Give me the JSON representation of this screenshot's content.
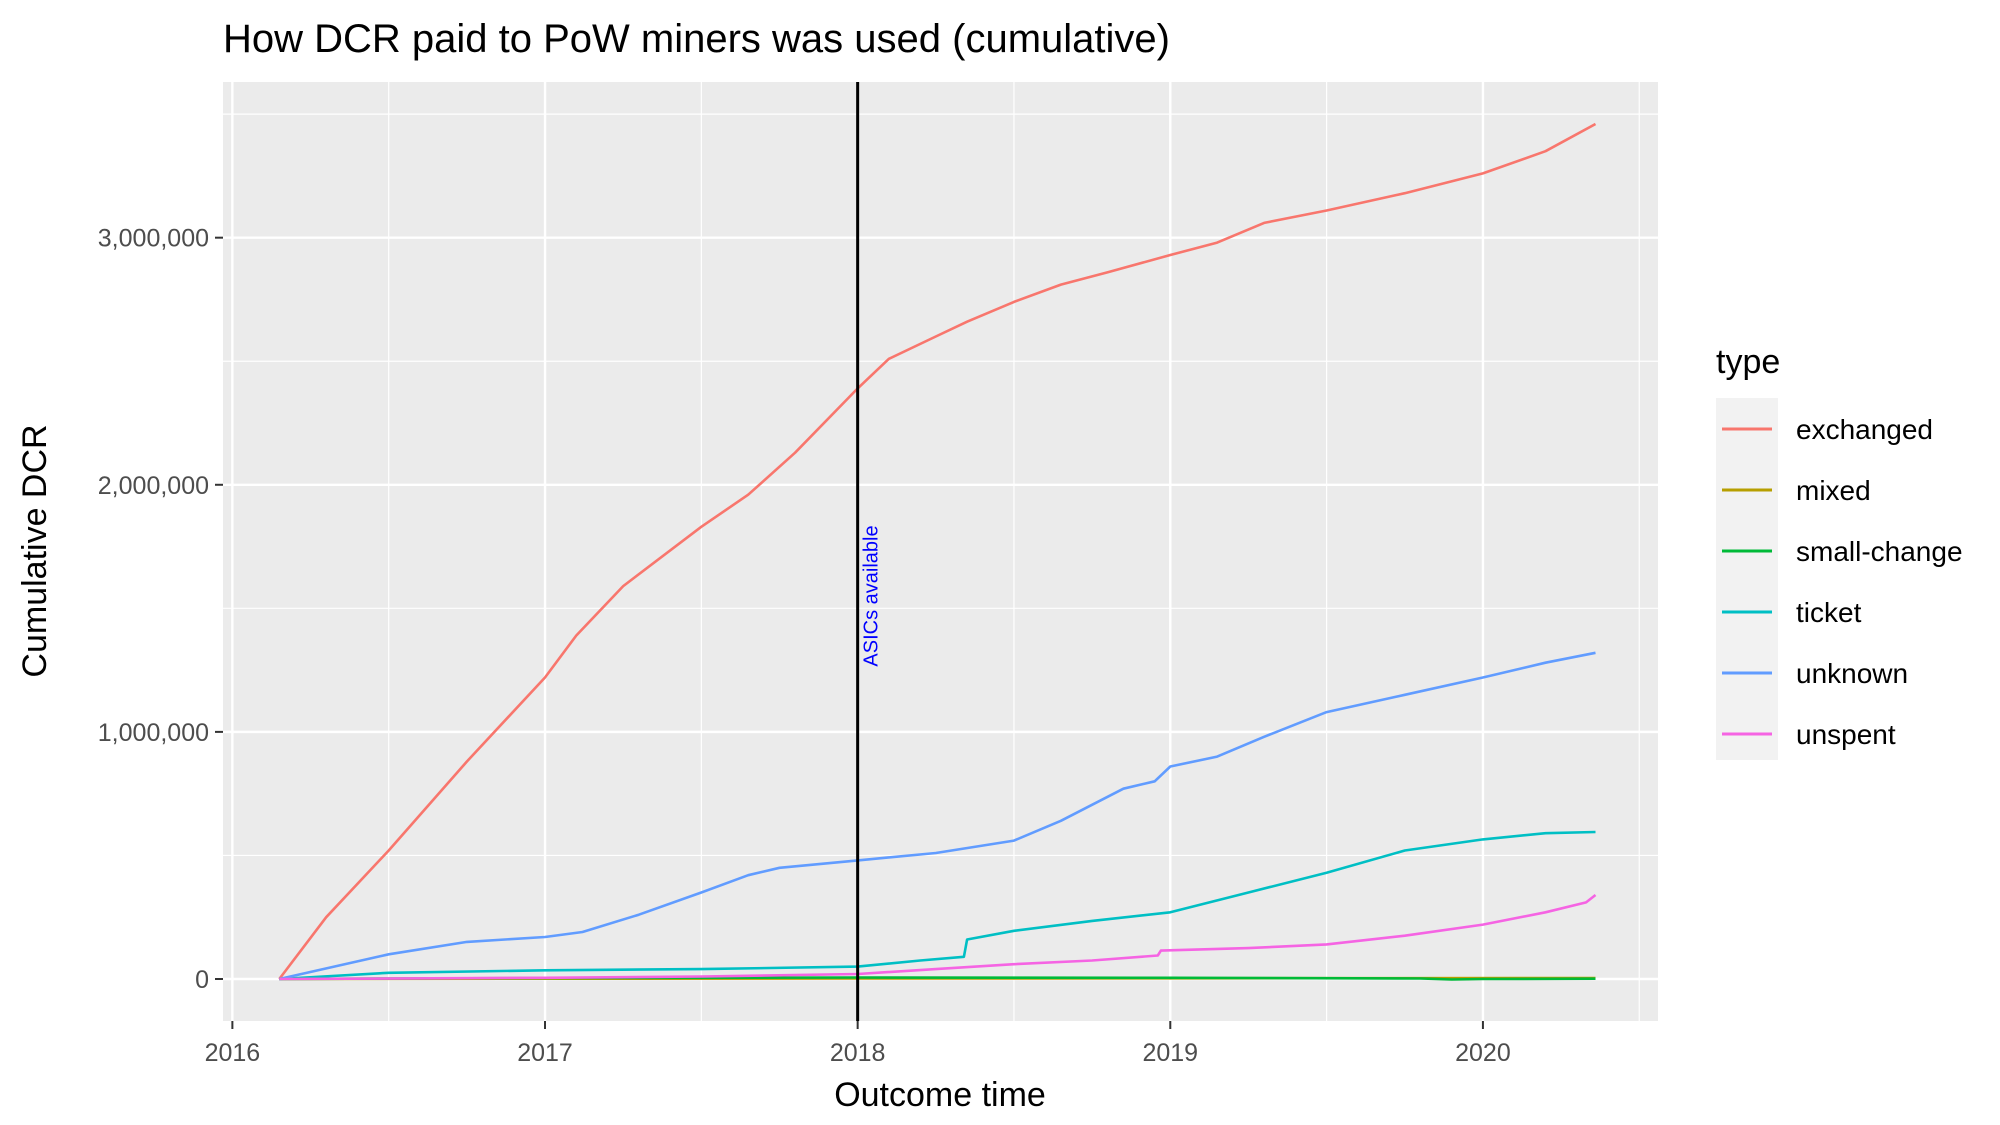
{
  "chart_data": {
    "type": "line",
    "title": "How DCR paid to PoW miners was used (cumulative)",
    "xlabel": "Outcome time",
    "ylabel": "Cumulative DCR",
    "xlim": [
      2015.97,
      2020.56
    ],
    "ylim": [
      -170000,
      3630000
    ],
    "x_ticks": [
      2016,
      2017,
      2018,
      2019,
      2020
    ],
    "x_tick_labels": [
      "2016",
      "2017",
      "2018",
      "2019",
      "2020"
    ],
    "y_ticks": [
      0,
      1000000,
      2000000,
      3000000
    ],
    "y_tick_labels": [
      "0",
      "1,000,000",
      "2,000,000",
      "3,000,000"
    ],
    "grid": true,
    "legend": {
      "title": "type",
      "placement": "right"
    },
    "vline": {
      "x": 2018.0,
      "label": "ASICs available",
      "label_color": "#0000ff"
    },
    "series": [
      {
        "name": "exchanged",
        "color": "#F8766D",
        "points": [
          [
            2016.15,
            0
          ],
          [
            2016.3,
            250000
          ],
          [
            2016.5,
            520000
          ],
          [
            2016.75,
            880000
          ],
          [
            2017.0,
            1220000
          ],
          [
            2017.1,
            1390000
          ],
          [
            2017.25,
            1590000
          ],
          [
            2017.5,
            1830000
          ],
          [
            2017.65,
            1960000
          ],
          [
            2017.8,
            2130000
          ],
          [
            2018.0,
            2390000
          ],
          [
            2018.1,
            2510000
          ],
          [
            2018.25,
            2600000
          ],
          [
            2018.35,
            2660000
          ],
          [
            2018.5,
            2740000
          ],
          [
            2018.65,
            2810000
          ],
          [
            2018.8,
            2860000
          ],
          [
            2019.0,
            2930000
          ],
          [
            2019.15,
            2980000
          ],
          [
            2019.3,
            3060000
          ],
          [
            2019.5,
            3110000
          ],
          [
            2019.75,
            3180000
          ],
          [
            2020.0,
            3260000
          ],
          [
            2020.2,
            3350000
          ],
          [
            2020.36,
            3460000
          ]
        ]
      },
      {
        "name": "mixed",
        "color": "#B79F00",
        "points": [
          [
            2016.15,
            0
          ],
          [
            2017.0,
            1000
          ],
          [
            2018.0,
            2000
          ],
          [
            2019.0,
            3000
          ],
          [
            2020.36,
            4000
          ]
        ]
      },
      {
        "name": "small-change",
        "color": "#00BA38",
        "points": [
          [
            2016.15,
            0
          ],
          [
            2016.5,
            2000
          ],
          [
            2017.0,
            4000
          ],
          [
            2018.0,
            6000
          ],
          [
            2019.0,
            5000
          ],
          [
            2019.8,
            2000
          ],
          [
            2019.9,
            -2000
          ],
          [
            2020.0,
            0
          ],
          [
            2020.36,
            1000
          ]
        ]
      },
      {
        "name": "ticket",
        "color": "#00BFC4",
        "points": [
          [
            2016.15,
            0
          ],
          [
            2016.5,
            25000
          ],
          [
            2017.0,
            35000
          ],
          [
            2017.5,
            40000
          ],
          [
            2018.0,
            50000
          ],
          [
            2018.2,
            75000
          ],
          [
            2018.34,
            90000
          ],
          [
            2018.35,
            160000
          ],
          [
            2018.5,
            195000
          ],
          [
            2018.75,
            235000
          ],
          [
            2019.0,
            270000
          ],
          [
            2019.25,
            350000
          ],
          [
            2019.5,
            430000
          ],
          [
            2019.75,
            520000
          ],
          [
            2020.0,
            565000
          ],
          [
            2020.2,
            590000
          ],
          [
            2020.36,
            595000
          ]
        ]
      },
      {
        "name": "unknown",
        "color": "#619CFF",
        "points": [
          [
            2016.15,
            0
          ],
          [
            2016.5,
            100000
          ],
          [
            2016.75,
            150000
          ],
          [
            2017.0,
            170000
          ],
          [
            2017.12,
            190000
          ],
          [
            2017.3,
            260000
          ],
          [
            2017.5,
            350000
          ],
          [
            2017.65,
            420000
          ],
          [
            2017.75,
            450000
          ],
          [
            2018.0,
            480000
          ],
          [
            2018.25,
            510000
          ],
          [
            2018.5,
            560000
          ],
          [
            2018.65,
            640000
          ],
          [
            2018.85,
            770000
          ],
          [
            2018.95,
            800000
          ],
          [
            2019.0,
            860000
          ],
          [
            2019.15,
            900000
          ],
          [
            2019.3,
            980000
          ],
          [
            2019.5,
            1080000
          ],
          [
            2019.75,
            1150000
          ],
          [
            2020.0,
            1220000
          ],
          [
            2020.2,
            1280000
          ],
          [
            2020.36,
            1320000
          ]
        ]
      },
      {
        "name": "unspent",
        "color": "#F564E3",
        "points": [
          [
            2016.15,
            0
          ],
          [
            2017.0,
            5000
          ],
          [
            2017.5,
            10000
          ],
          [
            2018.0,
            20000
          ],
          [
            2018.25,
            40000
          ],
          [
            2018.5,
            60000
          ],
          [
            2018.75,
            75000
          ],
          [
            2018.96,
            95000
          ],
          [
            2018.97,
            115000
          ],
          [
            2019.25,
            125000
          ],
          [
            2019.5,
            140000
          ],
          [
            2019.75,
            175000
          ],
          [
            2020.0,
            220000
          ],
          [
            2020.2,
            270000
          ],
          [
            2020.33,
            310000
          ],
          [
            2020.36,
            340000
          ]
        ]
      }
    ]
  }
}
